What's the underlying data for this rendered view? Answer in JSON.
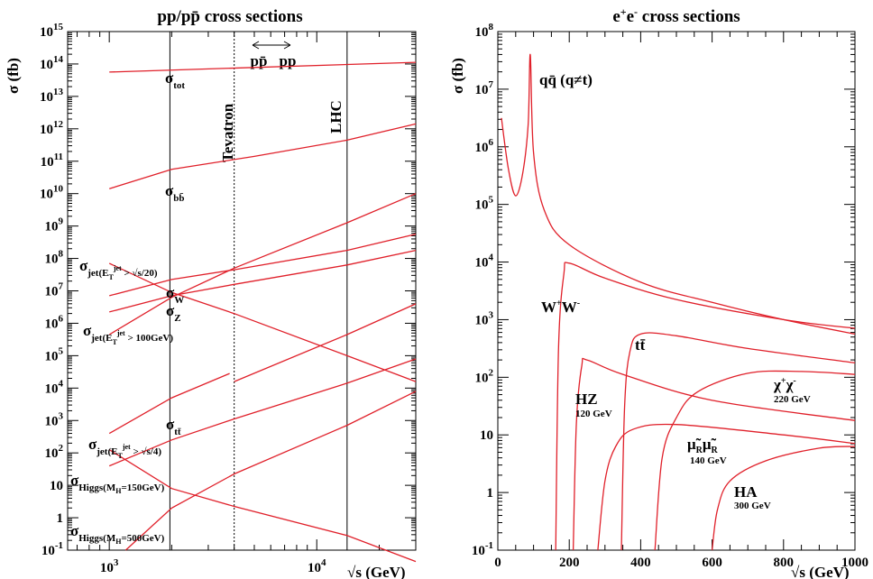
{
  "chart_data": [
    {
      "type": "line",
      "title": "pp/pp̄ cross sections",
      "ylabel": "σ (fb)",
      "xlabel": "√s (GeV)",
      "xscale": "log",
      "yscale": "log",
      "xlim": [
        630,
        30000
      ],
      "ylim_exp": [
        -1,
        15
      ],
      "xticks": [
        "10^3",
        "10^4"
      ],
      "yticks": [
        "10^-1",
        "1",
        "10",
        "10^2",
        "10^3",
        "10^4",
        "10^5",
        "10^6",
        "10^7",
        "10^8",
        "10^9",
        "10^10",
        "10^11",
        "10^12",
        "10^13",
        "10^14",
        "10^15"
      ],
      "vlines": [
        {
          "label": "Tevatron",
          "x": 1960,
          "style": "solid"
        },
        {
          "label": "",
          "x": 4000,
          "style": "dotted"
        },
        {
          "label": "LHC",
          "x": 14000,
          "style": "solid"
        }
      ],
      "region_labels": [
        "pp̄",
        "pp"
      ],
      "series": [
        {
          "name": "σtot",
          "x": [
            1000,
            30000
          ],
          "log10y": [
            13.75,
            14.05
          ]
        },
        {
          "name": "σbb̄",
          "x": [
            1000,
            2000,
            5000,
            14000,
            30000
          ],
          "log10y": [
            10.15,
            10.75,
            11.15,
            11.65,
            12.15
          ]
        },
        {
          "name": "σjet(ETjet>√s/20)",
          "x": [
            1000,
            2000,
            4000,
            14000,
            30000
          ],
          "log10y": [
            7.85,
            6.95,
            6.3,
            5.0,
            4.2
          ]
        },
        {
          "name": "σW",
          "x": [
            1000,
            2000,
            4000,
            14000,
            30000
          ],
          "log10y": [
            6.85,
            7.35,
            7.65,
            8.25,
            8.75
          ]
        },
        {
          "name": "σZ",
          "x": [
            1000,
            2000,
            4000,
            14000,
            30000
          ],
          "log10y": [
            6.35,
            6.85,
            7.2,
            7.8,
            8.25
          ]
        },
        {
          "name": "σjet(ETjet>100GeV)",
          "x": [
            1000,
            2000,
            4000,
            14000,
            30000
          ],
          "log10y": [
            5.65,
            6.8,
            7.7,
            9.1,
            10.0
          ]
        },
        {
          "name": "σtt̄",
          "x": [
            1000,
            2000,
            3800,
            4000,
            14000,
            30000
          ],
          "log10y": [
            2.6,
            3.7,
            4.45,
            4.2,
            5.65,
            6.6
          ]
        },
        {
          "name": "σjet(ETjet>√s/4)",
          "x": [
            1000,
            2000,
            4000,
            14000,
            30000
          ],
          "log10y": [
            2.1,
            0.9,
            0.35,
            -0.55,
            -1.35
          ]
        },
        {
          "name": "σHiggs(MH=150GeV)",
          "x": [
            1000,
            2000,
            4000,
            14000,
            30000
          ],
          "log10y": [
            1.6,
            2.4,
            3.05,
            4.15,
            4.9
          ]
        },
        {
          "name": "σHiggs(MH=500GeV)",
          "x": [
            1200,
            2000,
            4000,
            14000,
            30000
          ],
          "log10y": [
            -1.0,
            0.3,
            1.35,
            2.85,
            3.9
          ]
        }
      ]
    },
    {
      "type": "line",
      "title": "e+e- cross sections",
      "ylabel": "σ (fb)",
      "xlabel": "√s (GeV)",
      "xscale": "linear",
      "yscale": "log",
      "xlim": [
        0,
        1000
      ],
      "ylim_exp": [
        -1,
        8
      ],
      "xticks": [
        0,
        200,
        400,
        600,
        800,
        1000
      ],
      "yticks": [
        "10^-1",
        "1",
        "10",
        "10^2",
        "10^3",
        "10^4",
        "10^5",
        "10^6",
        "10^7",
        "10^8"
      ],
      "series": [
        {
          "name": "qq̄ (q≠t)",
          "x": [
            10,
            30,
            50,
            70,
            85,
            91,
            100,
            130,
            200,
            400,
            600,
            800,
            1000
          ],
          "log10y": [
            6.5,
            5.6,
            5.15,
            5.55,
            6.4,
            7.6,
            5.9,
            4.9,
            4.3,
            3.65,
            3.3,
            3.0,
            2.75
          ]
        },
        {
          "name": "W+W-",
          "x": [
            162,
            170,
            185,
            200,
            300,
            500,
            800,
            1000
          ],
          "log10y": [
            -1.0,
            2.5,
            3.8,
            3.98,
            3.72,
            3.35,
            3.0,
            2.85
          ]
        },
        {
          "name": "tt̄",
          "x": [
            346,
            355,
            370,
            400,
            500,
            700,
            1000
          ],
          "log10y": [
            -1.0,
            1.5,
            2.45,
            2.75,
            2.72,
            2.5,
            2.25
          ]
        },
        {
          "name": "HZ",
          "x": [
            211,
            220,
            235,
            250,
            350,
            600,
            1000
          ],
          "log10y": [
            -1.0,
            1.2,
            2.2,
            2.3,
            2.05,
            1.6,
            1.25
          ]
        },
        {
          "name": "χ+χ-",
          "x": [
            440,
            460,
            500,
            560,
            700,
            850,
            1000
          ],
          "log10y": [
            -1.0,
            0.6,
            1.3,
            1.75,
            2.07,
            2.1,
            2.05
          ]
        },
        {
          "name": "μ̃Rμ̃R",
          "x": [
            280,
            300,
            330,
            380,
            500,
            800,
            1000
          ],
          "log10y": [
            -1.0,
            0.2,
            0.8,
            1.1,
            1.18,
            1.0,
            0.85
          ]
        },
        {
          "name": "HA",
          "x": [
            600,
            615,
            650,
            750,
            900,
            1000
          ],
          "log10y": [
            -1.0,
            -0.3,
            0.2,
            0.55,
            0.77,
            0.8
          ]
        }
      ]
    }
  ],
  "labels": {
    "left_title": "pp/pp̄ cross sections",
    "right_title_base1": "e",
    "right_title_sup1": "+",
    "right_title_base2": "e",
    "right_title_sup2": "-",
    "right_title_rest": " cross sections",
    "ylabel": "σ (fb)",
    "xlabel": "√s (GeV)",
    "tevatron": "Tevatron",
    "lhc": "LHC",
    "ppbar": "pp̄",
    "pp": "pp",
    "sigma": "σ",
    "tot": "tot",
    "bb": "bb̄",
    "jet1_sub": "jet",
    "jet1_cond": "(E",
    "jet1_T": "T",
    "jet1_jet": "jet",
    "jet1_rest": " > √s/20)",
    "W": "W",
    "Z": "Z",
    "jet2_sub": "jet",
    "jet2_cond": "(E",
    "jet2_T": "T",
    "jet2_jet": "jet",
    "jet2_rest": " > 100GeV)",
    "tt": "tt̄",
    "jet3_sub": "jet",
    "jet3_cond": "(E",
    "jet3_T": "T",
    "jet3_jet": "jet",
    "jet3_rest": " > √s/4)",
    "higgs_sub": "Higgs",
    "higgs1_cond": "(M",
    "higgs1_H": "H",
    "higgs1_rest": "=150GeV)",
    "higgs2_cond": "(M",
    "higgs2_H": "H",
    "higgs2_rest": "=500GeV)",
    "qq": "qq̄ (q≠t)",
    "WW_W1": "W",
    "WW_p": "+",
    "WW_W2": "W",
    "WW_m": "-",
    "ttbar": "tt̄",
    "HZ": "HZ",
    "HZ_mass": "120 GeV",
    "chi_1": "χ",
    "chi_p": "+",
    "chi_2": "χ",
    "chi_m": "-",
    "chi_mass": "220 GeV",
    "mu": "μ̃",
    "mu_R": "R",
    "mu2": "μ̃",
    "mu2_R": "R",
    "mu_mass": "140 GeV",
    "HA": "HA",
    "HA_mass": "300 GeV",
    "ten": "10"
  }
}
